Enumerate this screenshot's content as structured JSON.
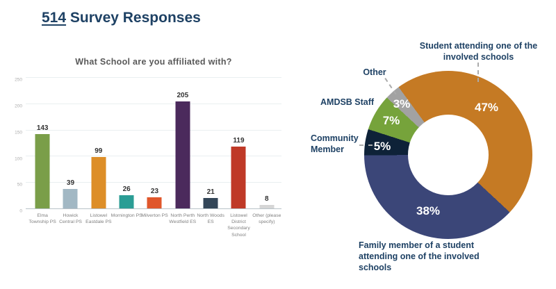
{
  "header": {
    "count": "514",
    "title_rest": " Survey Responses"
  },
  "colors": {
    "title_navy": "#1E4164",
    "chart_title_gray": "#595959",
    "value_label_gray": "#333333",
    "axis_label_gray": "#7F7F7F",
    "leader_gray": "#ABABAB",
    "percent_label_white": "#FFFFFF"
  },
  "chart_data": [
    {
      "type": "bar",
      "title": "What School are you affiliated with?",
      "categories": [
        "Elma Township PS",
        "Howick Central PS",
        "Listowel Eastdale PS",
        "Mornington PS",
        "Milverton PS",
        "North Perth Westfield ES",
        "North Woods ES",
        "Listowel District Secondary School",
        "Other (please specify)"
      ],
      "values": [
        143,
        39,
        99,
        26,
        23,
        205,
        21,
        119,
        8
      ],
      "bar_colors": [
        "#7A9E49",
        "#A2B8C4",
        "#DD8E28",
        "#2B9D95",
        "#E0572B",
        "#4B2A5C",
        "#334658",
        "#BF3927",
        "#D6D6D6"
      ],
      "value_labels": [
        143,
        39,
        99,
        26,
        23,
        205,
        21,
        119,
        8
      ],
      "xlabel": "",
      "ylabel": "",
      "ylim": [
        0,
        250
      ],
      "yticks": [
        0,
        50,
        100,
        150,
        200,
        250
      ],
      "grid": true,
      "legend": "none"
    },
    {
      "type": "pie",
      "subtype": "donut",
      "start_angle_deg": -36.2,
      "direction": "clockwise",
      "legend_position": "outside-callouts",
      "slices": [
        {
          "label": "Student attending one of the involved schools",
          "value_pct": 47,
          "pct_label": "47%",
          "color": "#C57A24"
        },
        {
          "label": "Family member of a student attending one of the involved schools",
          "value_pct": 38,
          "pct_label": "38%",
          "color": "#3B4678"
        },
        {
          "label": "Community Member",
          "value_pct": 5,
          "pct_label": "5%",
          "color": "#0E2238"
        },
        {
          "label": "AMDSB Staff",
          "value_pct": 7,
          "pct_label": "7%",
          "color": "#76A33B"
        },
        {
          "label": "Other",
          "value_pct": 3,
          "pct_label": "3%",
          "color": "#A2A2A2"
        }
      ]
    }
  ]
}
